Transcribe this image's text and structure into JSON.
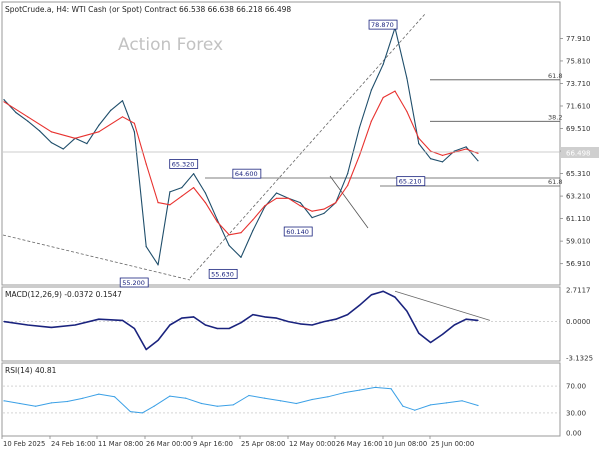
{
  "header": {
    "symbol_line": "SpotCrude.a, H4:  WTI Cash (or Spot) Contract  66.538 66.638 66.218 66.498",
    "watermark": "Action Forex"
  },
  "current_price": "66.498",
  "colors": {
    "price": "#1f4e6b",
    "ma": "#e8322f",
    "macd": "#1a237e",
    "signal": "#9e9e9e",
    "rsi": "#3ba0e6",
    "fib": "#555555",
    "label_border": "#1a237e",
    "label_text": "#1a237e"
  },
  "chart_data": [
    {
      "type": "line",
      "panel": "price",
      "title": "",
      "y_ticks": [
        "77.910",
        "75.810",
        "73.710",
        "71.610",
        "69.510",
        "67.410",
        "65.310",
        "63.210",
        "61.110",
        "59.010",
        "56.910"
      ],
      "ylim": [
        55.2,
        80.0
      ],
      "x_ticks": [
        "10 Feb 2025",
        "24 Feb 16:00",
        "11 Mar 08:00",
        "26 Mar 00:00",
        "9 Apr 16:00",
        "25 Apr 08:00",
        "12 May 00:00",
        "26 May 16:00",
        "10 Jun 08:00",
        "25 Jun 00:00"
      ],
      "series": [
        {
          "key": "price",
          "x": [
            0,
            3,
            6,
            9,
            12,
            15,
            18,
            21,
            24,
            27,
            30,
            33,
            36,
            39,
            42,
            45,
            48,
            51,
            54,
            57,
            60,
            63,
            66,
            69,
            72,
            75,
            78,
            81,
            84,
            87,
            90,
            93,
            96,
            99,
            102,
            105,
            108,
            111,
            114,
            117,
            120
          ],
          "values": [
            72.2,
            71.0,
            70.2,
            69.3,
            68.2,
            67.6,
            68.6,
            68.1,
            69.8,
            71.2,
            72.1,
            69.2,
            58.5,
            56.8,
            63.6,
            64.0,
            65.3,
            63.5,
            61.0,
            58.6,
            57.5,
            60.0,
            62.2,
            63.5,
            63.0,
            62.6,
            61.2,
            61.6,
            62.6,
            65.3,
            69.6,
            73.1,
            75.5,
            78.9,
            74.2,
            68.1,
            66.7,
            66.4,
            67.4,
            67.8,
            66.5
          ]
        },
        {
          "key": "ma",
          "x": [
            0,
            6,
            12,
            18,
            24,
            30,
            33,
            36,
            39,
            42,
            45,
            48,
            51,
            54,
            57,
            60,
            63,
            66,
            69,
            72,
            75,
            78,
            81,
            84,
            87,
            90,
            93,
            96,
            99,
            102,
            105,
            108,
            111,
            114,
            117,
            120
          ],
          "values": [
            72.0,
            70.6,
            69.2,
            68.6,
            69.2,
            70.6,
            70.0,
            66.2,
            62.6,
            62.4,
            63.2,
            64.0,
            62.6,
            60.8,
            59.6,
            59.8,
            61.0,
            62.3,
            63.0,
            63.0,
            62.3,
            61.8,
            62.0,
            62.6,
            64.2,
            67.0,
            70.2,
            72.4,
            73.0,
            71.1,
            68.6,
            67.4,
            67.0,
            67.3,
            67.6,
            67.2
          ]
        }
      ],
      "annotations": [
        {
          "label": "78.870",
          "x": 99,
          "y": 78.87
        },
        {
          "label": "65.320",
          "x": 46,
          "y": 65.32
        },
        {
          "label": "64.600",
          "x": 63,
          "y": 64.6
        },
        {
          "label": "60.140",
          "x": 76,
          "y": 60.14
        },
        {
          "label": "55.200",
          "x": 36,
          "y": 55.2
        },
        {
          "label": "55.630",
          "x": 57,
          "y": 55.63
        },
        {
          "label": "65.210",
          "x": 104,
          "y": 65.21
        }
      ],
      "fib_levels": [
        {
          "label": "61.8",
          "y": 74.05
        },
        {
          "label": "38.2",
          "y": 70.18
        },
        {
          "label": "61.8",
          "y": 64.15
        }
      ]
    },
    {
      "type": "line",
      "panel": "macd",
      "title": "MACD(12,26,9) -0.0372 0.1547",
      "y_ticks": [
        "2.7117",
        "0.0000",
        "-3.1325"
      ],
      "ylim": [
        -3.1325,
        2.7117
      ],
      "series": [
        {
          "key": "macd",
          "x": [
            0,
            6,
            12,
            18,
            24,
            30,
            33,
            36,
            39,
            42,
            45,
            48,
            51,
            54,
            57,
            60,
            63,
            66,
            69,
            72,
            75,
            78,
            81,
            84,
            87,
            90,
            93,
            96,
            99,
            102,
            105,
            108,
            111,
            114,
            117,
            120
          ],
          "values": [
            0.0,
            -0.3,
            -0.5,
            -0.3,
            0.2,
            0.1,
            -0.6,
            -2.4,
            -1.6,
            -0.3,
            0.3,
            0.4,
            -0.3,
            -0.6,
            -0.6,
            -0.1,
            0.6,
            0.4,
            0.3,
            0.0,
            -0.2,
            -0.3,
            0.0,
            0.2,
            0.6,
            1.4,
            2.3,
            2.6,
            2.1,
            0.9,
            -1.0,
            -1.8,
            -1.1,
            -0.3,
            0.2,
            0.1
          ]
        }
      ]
    },
    {
      "type": "line",
      "panel": "rsi",
      "title": "RSI(14) 40.81",
      "y_ticks": [
        "70.00",
        "30.00",
        "0.00"
      ],
      "ylim": [
        0,
        100
      ],
      "series": [
        {
          "key": "rsi",
          "x": [
            0,
            4,
            8,
            12,
            16,
            20,
            24,
            28,
            32,
            35,
            38,
            42,
            46,
            50,
            54,
            58,
            62,
            66,
            70,
            74,
            78,
            82,
            86,
            90,
            94,
            98,
            101,
            104,
            108,
            112,
            116,
            120
          ],
          "values": [
            48,
            44,
            40,
            45,
            47,
            52,
            58,
            54,
            32,
            30,
            40,
            55,
            52,
            44,
            40,
            42,
            56,
            52,
            48,
            44,
            50,
            54,
            60,
            64,
            68,
            66,
            40,
            34,
            42,
            45,
            48,
            41
          ]
        }
      ]
    }
  ]
}
